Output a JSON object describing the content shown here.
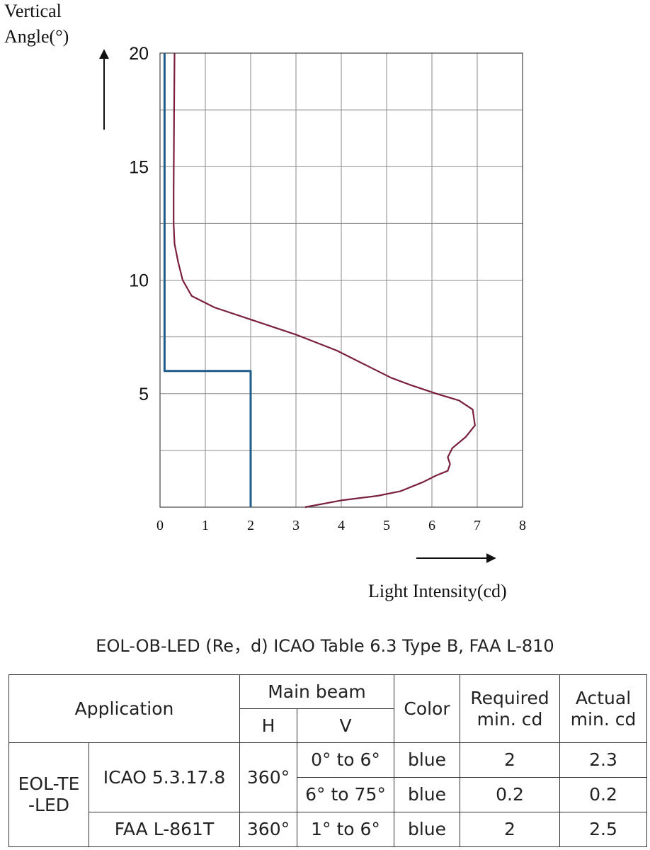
{
  "chart_data": {
    "type": "line",
    "ylabel": "Vertical Angle(°)",
    "xlabel": "Light Intensity(cd)",
    "xlim": [
      0,
      8
    ],
    "ylim": [
      0,
      20
    ],
    "x_ticks": [
      "0",
      "1",
      "2",
      "3",
      "4",
      "5",
      "6",
      "7",
      "8"
    ],
    "y_ticks": [
      "5",
      "10",
      "15",
      "20"
    ],
    "grid": true,
    "colors": {
      "measured": "#7a1f3d",
      "required": "#1f5c8a"
    },
    "series": [
      {
        "points": [
          [
            3.2,
            0
          ],
          [
            4.0,
            0.3
          ],
          [
            4.8,
            0.5
          ],
          [
            5.3,
            0.7
          ],
          [
            5.8,
            1.1
          ],
          [
            6.1,
            1.4
          ],
          [
            6.35,
            1.6
          ],
          [
            6.4,
            1.9
          ],
          [
            6.35,
            2.2
          ],
          [
            6.45,
            2.6
          ],
          [
            6.75,
            3.1
          ],
          [
            6.95,
            3.6
          ],
          [
            6.9,
            4.3
          ],
          [
            6.6,
            4.7
          ],
          [
            6.1,
            5.0
          ],
          [
            5.5,
            5.4
          ],
          [
            5.1,
            5.7
          ],
          [
            4.6,
            6.2
          ],
          [
            3.9,
            6.9
          ],
          [
            3.0,
            7.6
          ],
          [
            2.1,
            8.2
          ],
          [
            1.2,
            8.8
          ],
          [
            0.7,
            9.3
          ],
          [
            0.5,
            10.0
          ],
          [
            0.4,
            10.8
          ],
          [
            0.32,
            11.6
          ],
          [
            0.3,
            12.5
          ],
          [
            0.3,
            14.0
          ],
          [
            0.31,
            17.0
          ],
          [
            0.32,
            20.0
          ]
        ]
      },
      {
        "points": [
          [
            2.0,
            0
          ],
          [
            2.0,
            6.0
          ],
          [
            0.1,
            6.0
          ],
          [
            0.1,
            20.0
          ]
        ]
      }
    ]
  },
  "spec_table": {
    "caption": "EOL-OB-LED (Re，d)  ICAO Table 6.3 Type B, FAA L-810",
    "headers": {
      "application": "Application",
      "main_beam": "Main beam",
      "h": "H",
      "v": "V",
      "color": "Color",
      "required": "Required min. cd",
      "actual": "Actual min. cd"
    },
    "group_label": "EOL-TE -LED",
    "rows": [
      {
        "standard": "ICAO 5.3.17.8",
        "h": "360°",
        "v": "0° to 6°",
        "color": "blue",
        "required": "2",
        "actual": "2.3"
      },
      {
        "v": "6° to 75°",
        "color": "blue",
        "required": "0.2",
        "actual": "0.2"
      },
      {
        "standard": "FAA L-861T",
        "h": "360°",
        "v": "1° to 6°",
        "color": "blue",
        "required": "2",
        "actual": "2.5"
      }
    ]
  }
}
